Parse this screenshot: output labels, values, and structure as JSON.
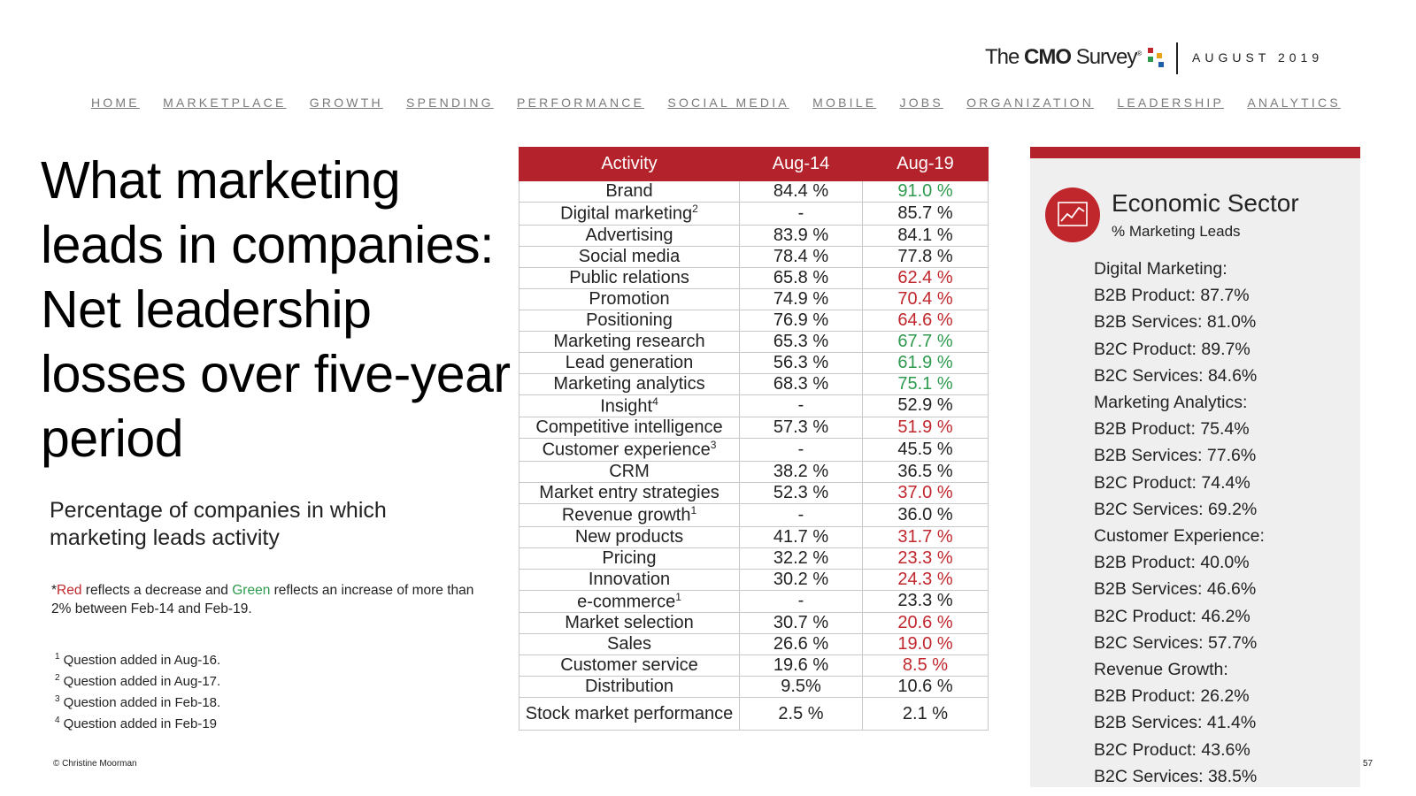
{
  "header": {
    "logo_prefix": "The",
    "logo_bold": "CMO",
    "logo_suffix": "Survey",
    "trademark": "®",
    "date": "AUGUST 2019",
    "logo_dot_colors": [
      "#c0272d",
      "#e8a317",
      "#2e9a4e",
      "#1f5fa8"
    ]
  },
  "nav": [
    "HOME",
    "MARKETPLACE",
    "GROWTH",
    "SPENDING",
    "PERFORMANCE",
    "SOCIAL MEDIA",
    "MOBILE",
    "JOBS",
    "ORGANIZATION",
    "LEADERSHIP",
    "ANALYTICS"
  ],
  "title": "What marketing leads in companies: Net leadership losses over five-year period",
  "subtitle": "Percentage of companies in which marketing leads activity",
  "note": {
    "prefix": "*",
    "red_word": "Red",
    "middle": " reflects a decrease and ",
    "green_word": "Green",
    "suffix": " reflects an increase of more than 2% between Feb-14 and Feb-19."
  },
  "footnotes": [
    {
      "num": "1",
      "text": "Question added in Aug-16."
    },
    {
      "num": "2",
      "text": "Question added in Aug-17."
    },
    {
      "num": "3",
      "text": "Question added in Feb-18."
    },
    {
      "num": "4",
      "text": "Question added in Feb-19"
    }
  ],
  "table": {
    "headers": [
      "Activity",
      "Aug-14",
      "Aug-19"
    ],
    "rows": [
      {
        "activity": "Brand",
        "sup": "",
        "aug14": "84.4 %",
        "aug19": "91.0 %",
        "trend": "pos"
      },
      {
        "activity": "Digital marketing",
        "sup": "2",
        "aug14": "-",
        "aug19": "85.7 %",
        "trend": ""
      },
      {
        "activity": "Advertising",
        "sup": "",
        "aug14": "83.9 %",
        "aug19": "84.1 %",
        "trend": ""
      },
      {
        "activity": "Social media",
        "sup": "",
        "aug14": "78.4 %",
        "aug19": "77.8 %",
        "trend": ""
      },
      {
        "activity": "Public relations",
        "sup": "",
        "aug14": "65.8 %",
        "aug19": "62.4 %",
        "trend": "neg"
      },
      {
        "activity": "Promotion",
        "sup": "",
        "aug14": "74.9 %",
        "aug19": "70.4 %",
        "trend": "neg"
      },
      {
        "activity": "Positioning",
        "sup": "",
        "aug14": "76.9 %",
        "aug19": "64.6 %",
        "trend": "neg"
      },
      {
        "activity": "Marketing research",
        "sup": "",
        "aug14": "65.3 %",
        "aug19": "67.7 %",
        "trend": "pos"
      },
      {
        "activity": "Lead generation",
        "sup": "",
        "aug14": "56.3 %",
        "aug19": "61.9 %",
        "trend": "pos"
      },
      {
        "activity": "Marketing analytics",
        "sup": "",
        "aug14": "68.3 %",
        "aug19": "75.1 %",
        "trend": "pos"
      },
      {
        "activity": "Insight",
        "sup": "4",
        "aug14": "-",
        "aug19": "52.9 %",
        "trend": ""
      },
      {
        "activity": "Competitive intelligence",
        "sup": "",
        "aug14": "57.3 %",
        "aug19": "51.9 %",
        "trend": "neg"
      },
      {
        "activity": "Customer experience",
        "sup": "3",
        "aug14": "-",
        "aug19": "45.5 %",
        "trend": ""
      },
      {
        "activity": "CRM",
        "sup": "",
        "aug14": "38.2 %",
        "aug19": "36.5 %",
        "trend": ""
      },
      {
        "activity": "Market entry strategies",
        "sup": "",
        "aug14": "52.3 %",
        "aug19": "37.0 %",
        "trend": "neg"
      },
      {
        "activity": "Revenue growth",
        "sup": "1",
        "aug14": "-",
        "aug19": "36.0 %",
        "trend": ""
      },
      {
        "activity": "New products",
        "sup": "",
        "aug14": "41.7 %",
        "aug19": "31.7 %",
        "trend": "neg"
      },
      {
        "activity": "Pricing",
        "sup": "",
        "aug14": "32.2 %",
        "aug19": "23.3 %",
        "trend": "neg"
      },
      {
        "activity": "Innovation",
        "sup": "",
        "aug14": "30.2 %",
        "aug19": "24.3 %",
        "trend": "neg"
      },
      {
        "activity": "e-commerce",
        "sup": "1",
        "aug14": "-",
        "aug19": "23.3 %",
        "trend": ""
      },
      {
        "activity": "Market selection",
        "sup": "",
        "aug14": "30.7 %",
        "aug19": "20.6 %",
        "trend": "neg"
      },
      {
        "activity": "Sales",
        "sup": "",
        "aug14": "26.6 %",
        "aug19": "19.0 %",
        "trend": "neg"
      },
      {
        "activity": "Customer service",
        "sup": "",
        "aug14": "19.6 %",
        "aug19": "8.5 %",
        "trend": "neg"
      },
      {
        "activity": "Distribution",
        "sup": "",
        "aug14": "9.5%",
        "aug19": "10.6 %",
        "trend": ""
      },
      {
        "activity": "Stock market performance",
        "sup": "",
        "aug14": "2.5 %",
        "aug19": "2.1 %",
        "trend": ""
      }
    ]
  },
  "panel": {
    "icon": "line-chart-icon",
    "title": "Economic Sector",
    "subtitle": "% Marketing Leads",
    "lines": [
      "Digital Marketing:",
      "B2B Product: 87.7%",
      "B2B Services: 81.0%",
      "B2C Product: 89.7%",
      "B2C Services: 84.6%",
      "Marketing Analytics:",
      "B2B Product: 75.4%",
      "B2B Services: 77.6%",
      "B2C Product: 74.4%",
      "B2C Services: 69.2%",
      "Customer Experience:",
      "B2B Product: 40.0%",
      "B2B Services: 46.6%",
      "B2C Product: 46.2%",
      "B2C Services: 57.7%",
      "Revenue Growth:",
      "B2B Product: 26.2%",
      "B2B Services: 41.4%",
      "B2C Product: 43.6%",
      "B2C Services: 38.5%"
    ]
  },
  "copyright": "© Christine Moorman",
  "page_number": "57",
  "colors": {
    "accent": "#b4222b",
    "increase": "#2e9a4e",
    "decrease": "#c0272d"
  }
}
